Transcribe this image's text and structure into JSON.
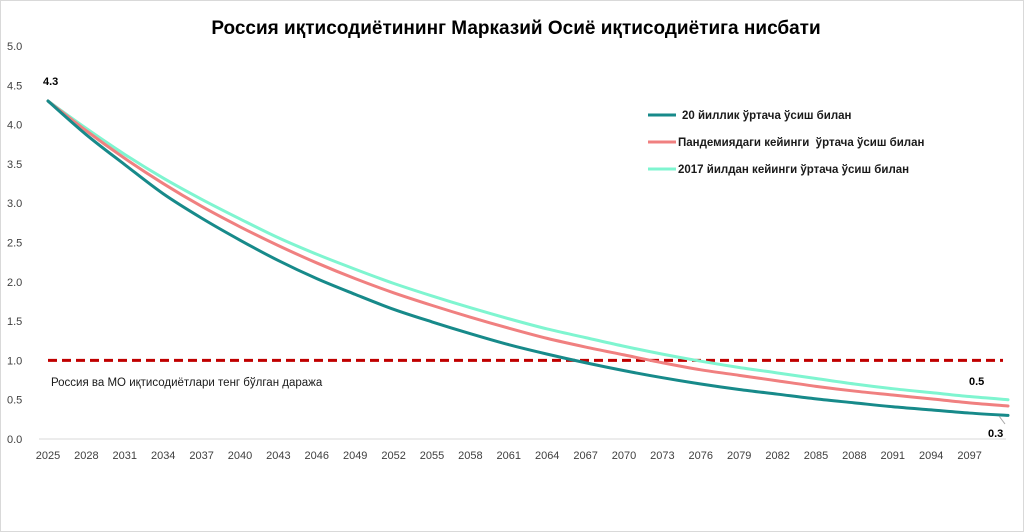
{
  "chart_data": {
    "type": "line",
    "title": "Россия иқтисодиётининг Марказий Осиё иқтисодиётига нисбати",
    "xlabel": "",
    "ylabel": "",
    "ylim": [
      0,
      5
    ],
    "yticks": [
      "0.0",
      "0.5",
      "1.0",
      "1.5",
      "2.0",
      "2.5",
      "3.0",
      "3.5",
      "4.0",
      "4.5",
      "5.0"
    ],
    "ytick_values": [
      0,
      0.5,
      1,
      1.5,
      2,
      2.5,
      3,
      3.5,
      4,
      4.5,
      5
    ],
    "xticks": [
      "2025",
      "2028",
      "2031",
      "2034",
      "2037",
      "2040",
      "2043",
      "2046",
      "2049",
      "2052",
      "2055",
      "2058",
      "2061",
      "2064",
      "2067",
      "2070",
      "2073",
      "2076",
      "2079",
      "2082",
      "2085",
      "2088",
      "2091",
      "2094",
      "2097"
    ],
    "x": [
      2025,
      2028,
      2031,
      2034,
      2037,
      2040,
      2043,
      2046,
      2049,
      2052,
      2055,
      2058,
      2061,
      2064,
      2067,
      2070,
      2073,
      2076,
      2079,
      2082,
      2085,
      2088,
      2091,
      2094,
      2097,
      2100
    ],
    "series": [
      {
        "name": "20 йиллик ўртача ўсиш билан",
        "color": "#178a8a",
        "values": [
          4.3,
          3.87,
          3.49,
          3.12,
          2.81,
          2.53,
          2.27,
          2.04,
          1.84,
          1.65,
          1.49,
          1.34,
          1.2,
          1.08,
          0.97,
          0.87,
          0.78,
          0.7,
          0.63,
          0.57,
          0.51,
          0.46,
          0.41,
          0.37,
          0.33,
          0.3
        ]
      },
      {
        "name": "Пандемиядаги кейинги  ўртача ўсиш билан",
        "color": "#f08080",
        "values": [
          4.3,
          3.92,
          3.57,
          3.25,
          2.96,
          2.7,
          2.46,
          2.24,
          2.04,
          1.86,
          1.7,
          1.55,
          1.41,
          1.28,
          1.17,
          1.07,
          0.97,
          0.88,
          0.81,
          0.74,
          0.67,
          0.61,
          0.56,
          0.51,
          0.46,
          0.42
        ]
      },
      {
        "name": "2017 йилдан кейинги ўртача ўсиш билан",
        "color": "#7ff5d0",
        "values": [
          4.3,
          3.95,
          3.62,
          3.32,
          3.05,
          2.8,
          2.56,
          2.35,
          2.16,
          1.98,
          1.82,
          1.67,
          1.53,
          1.4,
          1.29,
          1.18,
          1.08,
          0.99,
          0.91,
          0.84,
          0.77,
          0.7,
          0.64,
          0.59,
          0.54,
          0.5
        ]
      }
    ],
    "reference_line": {
      "value": 1.0,
      "color": "#c00000",
      "label": "Россия ва МО иқтисодиётлари тенг бўлган даража"
    },
    "data_labels": [
      {
        "text": "4.3",
        "x": 2025,
        "y": 4.3
      },
      {
        "text": "0.5",
        "x": 2100,
        "y": 0.5
      },
      {
        "text": "0.3",
        "x": 2100,
        "y": 0.3
      }
    ],
    "legend_position": "top-right",
    "grid": false
  }
}
